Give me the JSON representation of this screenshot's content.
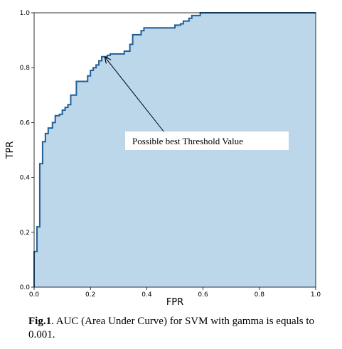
{
  "chart_data": {
    "type": "line",
    "xlabel": "FPR",
    "ylabel": "TPR",
    "xlim": [
      0.0,
      1.0
    ],
    "ylim": [
      0.0,
      1.0
    ],
    "x_ticks": [
      "0.0",
      "0.2",
      "0.4",
      "0.6",
      "0.8",
      "1.0"
    ],
    "y_ticks": [
      "0.0",
      "0.2",
      "0.4",
      "0.6",
      "0.8",
      "1.0"
    ],
    "grid": false,
    "area_fill": true,
    "colors": {
      "line": "#1f5f99",
      "fill": "#bcd6ea"
    },
    "series": [
      {
        "x": [
          0.0,
          0.0,
          0.01,
          0.01,
          0.02,
          0.02,
          0.03,
          0.03,
          0.04,
          0.04,
          0.05,
          0.05,
          0.065,
          0.065,
          0.075,
          0.075,
          0.09,
          0.09,
          0.1,
          0.1,
          0.11,
          0.11,
          0.12,
          0.12,
          0.13,
          0.13,
          0.15,
          0.15,
          0.19,
          0.19,
          0.2,
          0.2,
          0.21,
          0.21,
          0.22,
          0.22,
          0.23,
          0.23,
          0.24,
          0.24,
          0.26,
          0.26,
          0.27,
          0.27,
          0.32,
          0.32,
          0.34,
          0.34,
          0.35,
          0.35,
          0.38,
          0.38,
          0.39,
          0.39,
          0.5,
          0.5,
          0.52,
          0.52,
          0.53,
          0.53,
          0.55,
          0.55,
          0.56,
          0.56,
          0.59,
          0.59,
          1.0
        ],
        "y": [
          0.0,
          0.13,
          0.13,
          0.22,
          0.22,
          0.45,
          0.45,
          0.53,
          0.53,
          0.56,
          0.56,
          0.58,
          0.58,
          0.6,
          0.6,
          0.625,
          0.625,
          0.63,
          0.63,
          0.645,
          0.645,
          0.655,
          0.655,
          0.665,
          0.665,
          0.7,
          0.7,
          0.75,
          0.75,
          0.77,
          0.77,
          0.79,
          0.79,
          0.8,
          0.8,
          0.81,
          0.81,
          0.825,
          0.825,
          0.84,
          0.84,
          0.845,
          0.845,
          0.85,
          0.85,
          0.86,
          0.86,
          0.885,
          0.885,
          0.92,
          0.92,
          0.935,
          0.935,
          0.945,
          0.945,
          0.955,
          0.955,
          0.96,
          0.96,
          0.97,
          0.97,
          0.98,
          0.98,
          0.99,
          0.99,
          1.0,
          1.0
        ]
      }
    ],
    "annotations": [
      {
        "text": "Possible best Threshold Value",
        "point_x": 0.25,
        "point_y": 0.84
      }
    ]
  },
  "caption": {
    "label": "Fig.1",
    "text": ". AUC (Area Under Curve) for SVM with gamma is equals to 0.001."
  }
}
